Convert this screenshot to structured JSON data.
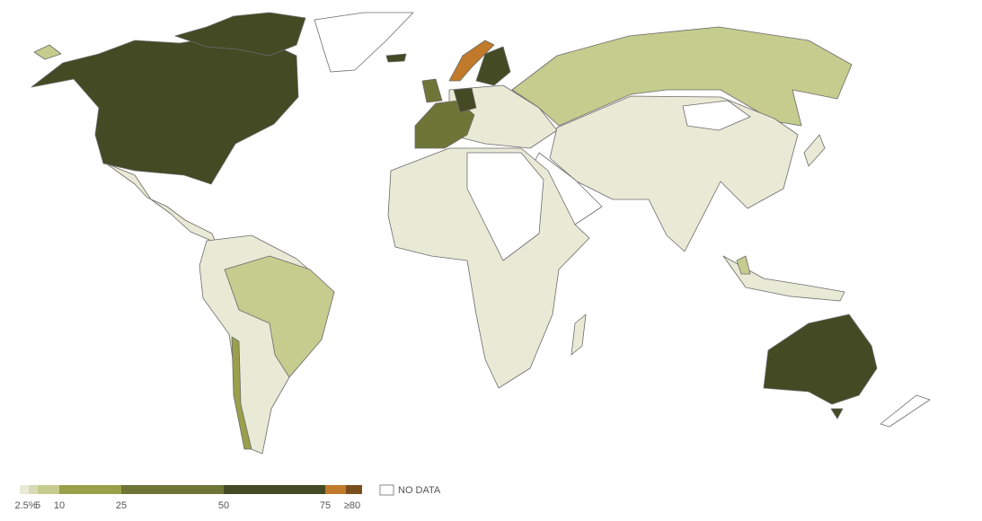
{
  "legend": {
    "breaks": [
      "2.5%",
      "5",
      "10",
      "25",
      "50",
      "75",
      "≥80"
    ],
    "colors": [
      "#e9ead6",
      "#d6dbb5",
      "#c5cc8e",
      "#9aa04a",
      "#6f7537",
      "#444a23",
      "#c07a2a",
      "#7a4f1e"
    ]
  },
  "no_data_label": "NO DATA"
}
